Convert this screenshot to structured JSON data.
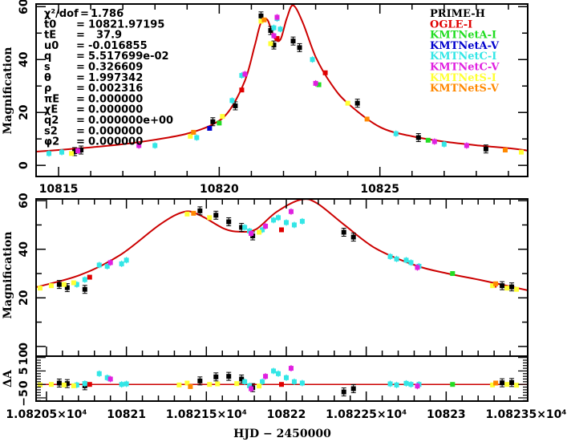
{
  "chart_data": [
    {
      "panel": "overview",
      "type": "scatter",
      "title": "",
      "xlabel": "",
      "ylabel": "Magnification",
      "xlim": [
        10814.3,
        10829.6
      ],
      "ylim": [
        -4.2,
        61
      ],
      "xticks": [
        10815,
        10820,
        10825
      ],
      "xtick_labels": [
        "10815",
        "10820",
        "10825"
      ],
      "yticks": [
        0,
        20,
        40,
        60
      ],
      "ytick_labels": [
        "0",
        "20",
        "40",
        "60"
      ],
      "model_curve": {
        "color": "#cc0000",
        "t": [
          10814.3,
          10815,
          10816,
          10817,
          10818,
          10819,
          10819.8,
          10820.3,
          10820.8,
          10821.1,
          10821.3,
          10821.5,
          10821.7,
          10821.9,
          10822.1,
          10822.3,
          10822.6,
          10823,
          10823.5,
          10824,
          10825,
          10826,
          10827,
          10828,
          10829,
          10829.6
        ],
        "A": [
          5.2,
          5.8,
          6.8,
          8.0,
          9.7,
          12.0,
          15.5,
          20.5,
          32.0,
          45.0,
          54.0,
          55.0,
          48.5,
          47.5,
          55.5,
          60.5,
          54.0,
          41.0,
          30.5,
          23.5,
          14.5,
          11.0,
          9.0,
          7.6,
          6.5,
          5.6
        ]
      },
      "parameters": [
        {
          "name": "χ²/dof",
          "value": "1.786"
        },
        {
          "name": "t0",
          "value": "10821.97195"
        },
        {
          "name": "tE",
          "value": "37.9"
        },
        {
          "name": "u0",
          "value": "-0.016855"
        },
        {
          "name": "q",
          "value": "5.517699e-02"
        },
        {
          "name": "s",
          "value": "0.326609"
        },
        {
          "name": "θ",
          "value": "1.997342"
        },
        {
          "name": "ρ",
          "value": "0.002316"
        },
        {
          "name": "πE",
          "value": "0.000000"
        },
        {
          "name": "χE",
          "value": "0.000000"
        },
        {
          "name": "q2",
          "value": "0.000000e+00"
        },
        {
          "name": "s2",
          "value": "0.000000"
        },
        {
          "name": "φ2",
          "value": "0.000000"
        }
      ],
      "legend_position": "top-right",
      "legend": [
        {
          "name": "PRIME-H",
          "color": "#000000"
        },
        {
          "name": "OGLE-I",
          "color": "#e00000"
        },
        {
          "name": "KMTNetA-I",
          "color": "#22dd22"
        },
        {
          "name": "KMTNetA-V",
          "color": "#0000cc"
        },
        {
          "name": "KMTNetC-I",
          "color": "#33e6e6"
        },
        {
          "name": "KMTNetC-V",
          "color": "#e020e0"
        },
        {
          "name": "KMTNetS-I",
          "color": "#ffff33"
        },
        {
          "name": "KMTNetS-V",
          "color": "#ff8800"
        }
      ],
      "series": [
        {
          "name": "PRIME-H",
          "points": [
            [
              10815.5,
              5.2
            ],
            [
              10815.7,
              5.8
            ],
            [
              10819.8,
              16.5
            ],
            [
              10820.5,
              22.5
            ],
            [
              10821.3,
              56.5
            ],
            [
              10821.6,
              51.0
            ],
            [
              10821.7,
              45.5
            ],
            [
              10822.3,
              47.0
            ],
            [
              10822.5,
              44.5
            ],
            [
              10824.3,
              23.5
            ],
            [
              10826.2,
              10.5
            ],
            [
              10828.3,
              6.2
            ]
          ]
        },
        {
          "name": "OGLE-I",
          "points": [
            [
              10820.7,
              28.5
            ],
            [
              10821.8,
              48.0
            ],
            [
              10823.3,
              35.0
            ]
          ]
        },
        {
          "name": "KMTNetA-I",
          "points": [
            [
              10820.0,
              16.0
            ],
            [
              10823.1,
              30.5
            ],
            [
              10826.5,
              9.5
            ]
          ]
        },
        {
          "name": "KMTNetA-V",
          "points": [
            [
              10819.7,
              14.0
            ]
          ]
        },
        {
          "name": "KMTNetC-I",
          "points": [
            [
              10814.7,
              4.5
            ],
            [
              10815.1,
              5.0
            ],
            [
              10818.0,
              7.5
            ],
            [
              10819.3,
              10.5
            ],
            [
              10820.4,
              24.5
            ],
            [
              10820.7,
              34.0
            ],
            [
              10821.7,
              52.0
            ],
            [
              10821.8,
              55.5
            ],
            [
              10821.9,
              51.5
            ],
            [
              10822.9,
              40.0
            ],
            [
              10825.5,
              12.0
            ],
            [
              10827.0,
              8.0
            ]
          ]
        },
        {
          "name": "KMTNetC-V",
          "points": [
            [
              10815.6,
              5.5
            ],
            [
              10817.5,
              7.5
            ],
            [
              10820.8,
              34.5
            ],
            [
              10821.7,
              49.0
            ],
            [
              10821.8,
              56.0
            ],
            [
              10823.0,
              31.0
            ],
            [
              10826.7,
              9.0
            ],
            [
              10827.7,
              7.5
            ]
          ]
        },
        {
          "name": "KMTNetS-I",
          "points": [
            [
              10815.4,
              4.5
            ],
            [
              10819.1,
              11.0
            ],
            [
              10820.1,
              18.5
            ],
            [
              10821.3,
              54.5
            ],
            [
              10821.6,
              46.0
            ],
            [
              10824.0,
              23.5
            ],
            [
              10829.4,
              5.0
            ]
          ]
        },
        {
          "name": "KMTNetS-V",
          "points": [
            [
              10819.2,
              12.5
            ],
            [
              10821.4,
              55.0
            ],
            [
              10824.6,
              17.5
            ],
            [
              10828.9,
              5.8
            ]
          ]
        }
      ]
    },
    {
      "panel": "zoom",
      "type": "scatter",
      "title": "",
      "xlabel": "",
      "ylabel": "Magnification",
      "xlim": [
        10820.435,
        10823.51
      ],
      "ylim": [
        -4,
        60.7
      ],
      "yticks": [
        0,
        20,
        40,
        60
      ],
      "ytick_labels": [
        "0",
        "20",
        "40",
        "60"
      ],
      "model_curve": {
        "color": "#cc0000",
        "t": [
          10820.435,
          10820.71,
          10820.96,
          10821.21,
          10821.36,
          10821.46,
          10821.61,
          10821.71,
          10821.81,
          10821.94,
          10822.09,
          10822.19,
          10822.36,
          10822.56,
          10822.81,
          10823.01,
          10823.21,
          10823.51
        ],
        "A": [
          24.4,
          29.4,
          37.6,
          50.2,
          55.4,
          54.0,
          48.5,
          47.2,
          48.2,
          55.4,
          60.4,
          59.0,
          50.2,
          40.3,
          33.3,
          30.0,
          27.4,
          23.1
        ]
      },
      "series": [
        {
          "name": "PRIME-H",
          "points": [
            [
              10820.58,
              25.5
            ],
            [
              10820.63,
              24.2
            ],
            [
              10820.74,
              23.5
            ],
            [
              10821.46,
              55.8
            ],
            [
              10821.56,
              54.0
            ],
            [
              10821.64,
              51.3
            ],
            [
              10821.72,
              49.0
            ],
            [
              10821.79,
              45.5
            ],
            [
              10822.36,
              47.0
            ],
            [
              10822.42,
              45.0
            ],
            [
              10823.35,
              25.0
            ],
            [
              10823.41,
              24.5
            ]
          ]
        },
        {
          "name": "OGLE-I",
          "points": [
            [
              10820.77,
              28.5
            ],
            [
              10821.97,
              48.0
            ],
            [
              10823.3,
              25.2
            ]
          ]
        },
        {
          "name": "KMTNetA-I",
          "points": [
            [
              10823.04,
              30.0
            ]
          ]
        },
        {
          "name": "KMTNetC-I",
          "points": [
            [
              10820.69,
              25.5
            ],
            [
              10820.74,
              27.5
            ],
            [
              10820.83,
              33.5
            ],
            [
              10820.88,
              33.0
            ],
            [
              10820.97,
              34.0
            ],
            [
              10821.0,
              35.5
            ],
            [
              10821.74,
              49.0
            ],
            [
              10821.77,
              47.5
            ],
            [
              10821.85,
              48.0
            ],
            [
              10821.92,
              52.0
            ],
            [
              10821.95,
              53.0
            ],
            [
              10822.0,
              51.0
            ],
            [
              10822.05,
              50.0
            ],
            [
              10822.1,
              51.5
            ],
            [
              10822.65,
              37.0
            ],
            [
              10822.69,
              36.0
            ],
            [
              10822.75,
              35.5
            ],
            [
              10822.78,
              34.5
            ],
            [
              10822.83,
              33.0
            ]
          ]
        },
        {
          "name": "KMTNetC-V",
          "points": [
            [
              10820.9,
              34.5
            ],
            [
              10821.78,
              46.5
            ],
            [
              10821.87,
              49.5
            ],
            [
              10822.03,
              55.5
            ],
            [
              10822.82,
              32.5
            ]
          ]
        },
        {
          "name": "KMTNetS-I",
          "points": [
            [
              10820.46,
              24.0
            ],
            [
              10820.53,
              25.0
            ],
            [
              10820.61,
              25.5
            ],
            [
              10820.67,
              26.2
            ],
            [
              10821.38,
              54.5
            ],
            [
              10821.52,
              53.0
            ],
            [
              10821.83,
              47.0
            ],
            [
              10823.29,
              25.0
            ],
            [
              10823.38,
              24.0
            ],
            [
              10823.44,
              23.5
            ]
          ]
        },
        {
          "name": "KMTNetS-V",
          "points": [
            [
              10821.42,
              54.8
            ],
            [
              10823.31,
              25.8
            ]
          ]
        }
      ]
    },
    {
      "panel": "residuals",
      "type": "scatter",
      "title": "",
      "xlabel": "HJD − 2450000",
      "ylabel": "ΔA",
      "xlim": [
        10820.435,
        10823.51
      ],
      "ylim": [
        -6.2,
        10.5
      ],
      "yticks": [
        -5,
        0,
        5,
        10
      ],
      "ytick_labels": [
        "−5",
        "0",
        "5",
        "10"
      ],
      "xticks": [
        10820.5,
        10821,
        10821.5,
        10822,
        10822.5,
        10823,
        10823.5
      ],
      "xtick_labels": [
        "1.08205×10⁴",
        "10821",
        "1.08215×10⁴",
        "10822",
        "1.08225×10⁴",
        "10823",
        "1.08235×10⁴"
      ],
      "zero_line_color": "#cc0000",
      "series": [
        {
          "name": "PRIME-H",
          "points": [
            [
              10820.58,
              0.5
            ],
            [
              10820.63,
              0.3
            ],
            [
              10820.74,
              -0.5
            ],
            [
              10821.46,
              1.3
            ],
            [
              10821.56,
              2.8
            ],
            [
              10821.64,
              3.0
            ],
            [
              10821.72,
              2.0
            ],
            [
              10821.79,
              -1.2
            ],
            [
              10822.36,
              -2.8
            ],
            [
              10822.42,
              -1.6
            ],
            [
              10823.35,
              0.6
            ],
            [
              10823.41,
              0.7
            ]
          ]
        },
        {
          "name": "OGLE-I",
          "points": [
            [
              10820.77,
              0.0
            ],
            [
              10821.97,
              0.0
            ]
          ]
        },
        {
          "name": "KMTNetA-I",
          "points": [
            [
              10823.04,
              0.0
            ]
          ]
        },
        {
          "name": "KMTNetC-I",
          "points": [
            [
              10820.69,
              -0.2
            ],
            [
              10820.74,
              0.3
            ],
            [
              10820.83,
              4.0
            ],
            [
              10820.88,
              2.5
            ],
            [
              10820.97,
              0.0
            ],
            [
              10821.0,
              0.2
            ],
            [
              10821.74,
              1.0
            ],
            [
              10821.77,
              -0.5
            ],
            [
              10821.85,
              1.0
            ],
            [
              10821.92,
              5.0
            ],
            [
              10821.95,
              4.0
            ],
            [
              10822.0,
              2.5
            ],
            [
              10822.05,
              1.0
            ],
            [
              10822.1,
              0.5
            ],
            [
              10822.65,
              0.2
            ],
            [
              10822.69,
              -0.2
            ],
            [
              10822.75,
              0.4
            ],
            [
              10822.78,
              0.0
            ],
            [
              10822.83,
              0.0
            ]
          ]
        },
        {
          "name": "KMTNetC-V",
          "points": [
            [
              10820.9,
              2.0
            ],
            [
              10821.78,
              -1.6
            ],
            [
              10821.87,
              3.0
            ],
            [
              10822.03,
              6.0
            ],
            [
              10822.82,
              -0.6
            ]
          ]
        },
        {
          "name": "KMTNetS-I",
          "points": [
            [
              10820.46,
              -0.2
            ],
            [
              10820.53,
              0.0
            ],
            [
              10820.61,
              -0.2
            ],
            [
              10820.67,
              -0.5
            ],
            [
              10821.33,
              -0.2
            ],
            [
              10821.38,
              0.5
            ],
            [
              10821.52,
              0.0
            ],
            [
              10821.57,
              0.2
            ],
            [
              10821.69,
              0.3
            ],
            [
              10821.83,
              -0.6
            ],
            [
              10823.29,
              -0.2
            ],
            [
              10823.38,
              0.0
            ],
            [
              10823.44,
              -0.3
            ]
          ]
        },
        {
          "name": "KMTNetS-V",
          "points": [
            [
              10821.4,
              -0.8
            ],
            [
              10823.31,
              0.5
            ]
          ]
        }
      ]
    }
  ]
}
